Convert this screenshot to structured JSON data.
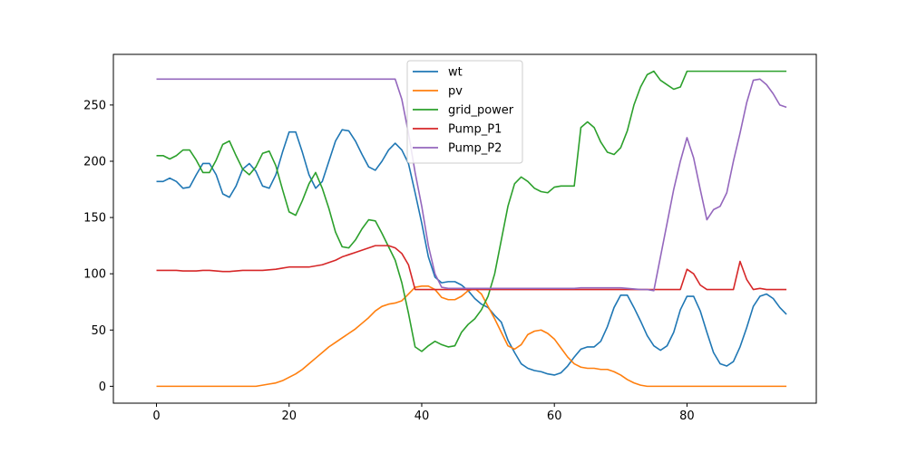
{
  "chart_data": {
    "type": "line",
    "title": "",
    "xlabel": "",
    "ylabel": "",
    "xlim": [
      -6.5,
      99.5
    ],
    "ylim": [
      -15,
      295
    ],
    "grid": false,
    "legend_position": "top-center",
    "x_ticks": [
      0,
      20,
      40,
      60,
      80
    ],
    "y_ticks": [
      0,
      50,
      100,
      150,
      200,
      250
    ],
    "x": [
      0,
      1,
      2,
      3,
      4,
      5,
      6,
      7,
      8,
      9,
      10,
      11,
      12,
      13,
      14,
      15,
      16,
      17,
      18,
      19,
      20,
      21,
      22,
      23,
      24,
      25,
      26,
      27,
      28,
      29,
      30,
      31,
      32,
      33,
      34,
      35,
      36,
      37,
      38,
      39,
      40,
      41,
      42,
      43,
      44,
      45,
      46,
      47,
      48,
      49,
      50,
      51,
      52,
      53,
      54,
      55,
      56,
      57,
      58,
      59,
      60,
      61,
      62,
      63,
      64,
      65,
      66,
      67,
      68,
      69,
      70,
      71,
      72,
      73,
      74,
      75,
      76,
      77,
      78,
      79,
      80,
      81,
      82,
      83,
      84,
      85,
      86,
      87,
      88,
      89,
      90,
      91,
      92,
      93,
      94,
      95
    ],
    "series": [
      {
        "name": "wt",
        "color": "#1f77b4",
        "values": [
          182,
          182,
          185,
          182,
          176,
          177,
          188,
          198,
          198,
          188,
          171,
          168,
          178,
          193,
          198,
          191,
          178,
          176,
          188,
          208,
          226,
          226,
          208,
          188,
          176,
          182,
          200,
          218,
          228,
          227,
          218,
          206,
          195,
          192,
          200,
          210,
          216,
          210,
          198,
          172,
          145,
          115,
          97,
          92,
          93,
          93,
          90,
          85,
          78,
          73,
          70,
          63,
          57,
          41,
          30,
          20,
          16,
          14,
          13,
          11,
          10,
          12,
          18,
          26,
          33,
          35,
          35,
          40,
          53,
          70,
          81,
          81,
          70,
          58,
          45,
          36,
          32,
          36,
          48,
          68,
          80,
          80,
          67,
          48,
          30,
          20,
          18,
          22,
          35,
          52,
          71,
          80,
          82,
          78,
          70,
          64
        ]
      },
      {
        "name": "pv",
        "color": "#ff7f0e",
        "values": [
          0,
          0,
          0,
          0,
          0,
          0,
          0,
          0,
          0,
          0,
          0,
          0,
          0,
          0,
          0,
          0,
          1,
          2,
          3,
          5,
          8,
          11,
          15,
          20,
          25,
          30,
          35,
          39,
          43,
          47,
          51,
          56,
          61,
          67,
          71,
          73,
          74,
          76,
          82,
          88,
          89,
          89,
          86,
          79,
          77,
          77,
          80,
          85,
          87,
          82,
          71,
          60,
          48,
          36,
          33,
          37,
          46,
          49,
          50,
          47,
          42,
          34,
          26,
          20,
          17,
          16,
          16,
          15,
          15,
          13,
          10,
          6,
          3,
          1,
          0,
          0,
          0,
          0,
          0,
          0,
          0,
          0,
          0,
          0,
          0,
          0,
          0,
          0,
          0,
          0,
          0,
          0,
          0,
          0,
          0,
          0
        ]
      },
      {
        "name": "grid_power",
        "color": "#2ca02c",
        "values": [
          205,
          205,
          202,
          205,
          210,
          210,
          201,
          190,
          190,
          201,
          215,
          218,
          205,
          193,
          188,
          195,
          207,
          209,
          196,
          175,
          155,
          152,
          165,
          180,
          190,
          176,
          158,
          137,
          124,
          123,
          130,
          140,
          148,
          147,
          136,
          124,
          112,
          92,
          65,
          35,
          31,
          36,
          40,
          37,
          35,
          36,
          48,
          55,
          60,
          68,
          80,
          100,
          130,
          160,
          180,
          186,
          182,
          176,
          173,
          172,
          177,
          178,
          178,
          178,
          230,
          235,
          230,
          217,
          208,
          206,
          212,
          227,
          250,
          266,
          277,
          280,
          272,
          268,
          264,
          266,
          280,
          280,
          280,
          280,
          280,
          280,
          280,
          280,
          280,
          280,
          280,
          280,
          280,
          280,
          280,
          280
        ]
      },
      {
        "name": "Pump_P1",
        "color": "#d62728",
        "values": [
          103,
          103,
          103,
          103,
          102.5,
          102.5,
          102.5,
          103,
          103,
          102.5,
          102,
          102,
          102.5,
          103,
          103,
          103,
          103,
          103.5,
          104,
          105,
          106,
          106,
          106,
          106,
          107,
          108,
          110,
          112,
          115,
          117,
          119,
          121,
          123,
          125,
          125,
          125,
          123,
          118,
          108,
          86,
          86,
          86,
          86,
          86,
          86,
          86,
          86,
          86,
          86,
          86,
          86,
          86,
          86,
          86,
          86,
          86,
          86,
          86,
          86,
          86,
          86,
          86,
          86,
          86,
          86,
          86,
          86,
          86,
          86,
          86,
          86,
          86,
          86,
          86,
          86,
          86,
          86,
          86,
          86,
          86,
          104,
          100,
          90,
          86,
          86,
          86,
          86,
          86,
          111,
          95,
          86,
          87,
          86,
          86,
          86,
          86
        ]
      },
      {
        "name": "Pump_P2",
        "color": "#9467bd",
        "values": [
          273,
          273,
          273,
          273,
          273,
          273,
          273,
          273,
          273,
          273,
          273,
          273,
          273,
          273,
          273,
          273,
          273,
          273,
          273,
          273,
          273,
          273,
          273,
          273,
          273,
          273,
          273,
          273,
          273,
          273,
          273,
          273,
          273,
          273,
          273,
          273,
          273,
          255,
          225,
          190,
          160,
          125,
          100,
          88,
          87,
          87,
          87,
          87,
          87,
          87,
          87,
          87,
          87,
          87,
          87,
          87,
          87,
          87,
          87,
          87,
          87,
          87,
          87,
          87,
          87.5,
          87.5,
          87.5,
          87.5,
          87.5,
          87.5,
          87.5,
          87,
          86.5,
          86,
          86,
          85,
          115,
          145,
          175,
          200,
          221,
          203,
          175,
          148,
          157,
          160,
          172,
          200,
          225,
          252,
          272,
          273,
          268,
          260,
          250,
          248
        ]
      }
    ]
  }
}
